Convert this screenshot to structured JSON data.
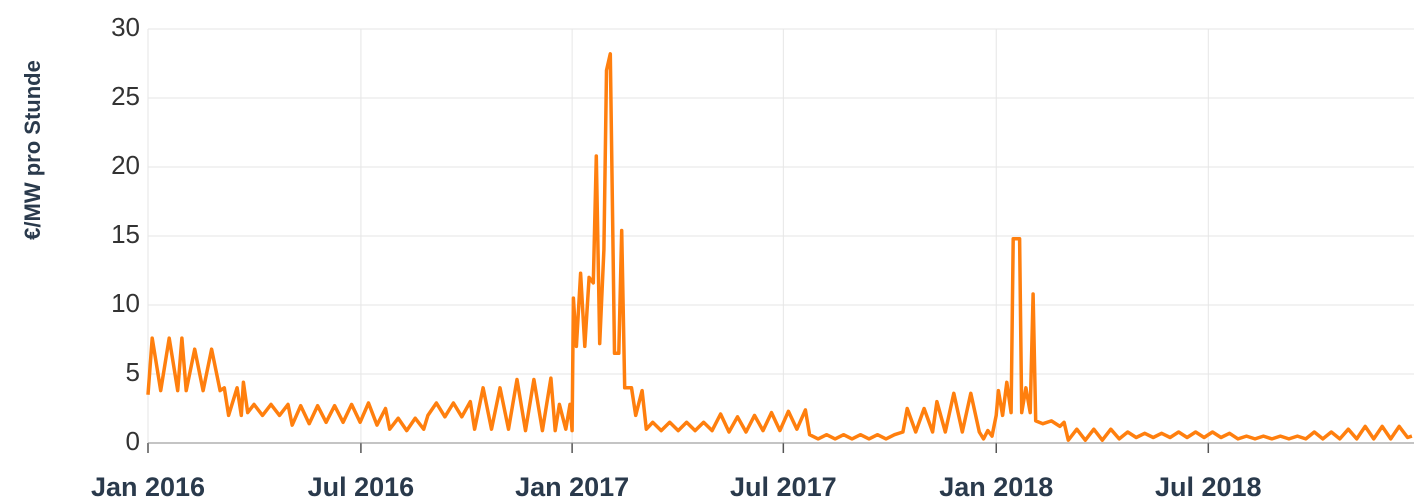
{
  "chart_data": {
    "type": "line",
    "ylabel": "€/MW pro Stunde",
    "color": "#ff7f0e",
    "grid": true,
    "xlim": [
      2016,
      2018.985
    ],
    "ylim": [
      0,
      30
    ],
    "yticks": [
      0,
      5,
      10,
      15,
      20,
      25,
      30
    ],
    "xticks": [
      {
        "value": 2016,
        "label": "Jan 2016"
      },
      {
        "value": 2016.502,
        "label": "Jul 2016"
      },
      {
        "value": 2017,
        "label": "Jan 2017"
      },
      {
        "value": 2017.498,
        "label": "Jul 2017"
      },
      {
        "value": 2018,
        "label": "Jan 2018"
      },
      {
        "value": 2018.5,
        "label": "Jul 2018"
      }
    ],
    "x": [
      2016.0,
      2016.01,
      2016.03,
      2016.05,
      2016.07,
      2016.08,
      2016.09,
      2016.11,
      2016.13,
      2016.15,
      2016.17,
      2016.18,
      2016.19,
      2016.21,
      2016.22,
      2016.225,
      2016.235,
      2016.25,
      2016.27,
      2016.29,
      2016.31,
      2016.33,
      2016.34,
      2016.36,
      2016.38,
      2016.4,
      2016.42,
      2016.44,
      2016.46,
      2016.48,
      2016.5,
      2016.52,
      2016.54,
      2016.56,
      2016.57,
      2016.59,
      2016.61,
      2016.63,
      2016.65,
      2016.66,
      2016.68,
      2016.7,
      2016.72,
      2016.74,
      2016.76,
      2016.77,
      2016.79,
      2016.81,
      2016.83,
      2016.85,
      2016.87,
      2016.89,
      2016.91,
      2016.93,
      2016.95,
      2016.96,
      2016.97,
      2016.985,
      2016.995,
      2017.0,
      2017.003,
      2017.01,
      2017.02,
      2017.03,
      2017.04,
      2017.05,
      2017.057,
      2017.065,
      2017.075,
      2017.081,
      2017.09,
      2017.1,
      2017.11,
      2017.117,
      2017.124,
      2017.14,
      2017.15,
      2017.165,
      2017.175,
      2017.19,
      2017.21,
      2017.23,
      2017.25,
      2017.27,
      2017.29,
      2017.31,
      2017.33,
      2017.35,
      2017.37,
      2017.39,
      2017.41,
      2017.43,
      2017.45,
      2017.47,
      2017.49,
      2017.51,
      2017.53,
      2017.55,
      2017.56,
      2017.58,
      2017.6,
      2017.62,
      2017.64,
      2017.66,
      2017.68,
      2017.7,
      2017.72,
      2017.74,
      2017.76,
      2017.78,
      2017.79,
      2017.81,
      2017.83,
      2017.85,
      2017.86,
      2017.88,
      2017.9,
      2017.92,
      2017.94,
      2017.96,
      2017.97,
      2017.98,
      2017.99,
      2018.0,
      2018.005,
      2018.015,
      2018.025,
      2018.035,
      2018.04,
      2018.055,
      2018.06,
      2018.07,
      2018.08,
      2018.087,
      2018.093,
      2018.11,
      2018.13,
      2018.15,
      2018.16,
      2018.17,
      2018.19,
      2018.21,
      2018.23,
      2018.25,
      2018.27,
      2018.29,
      2018.31,
      2018.33,
      2018.35,
      2018.37,
      2018.39,
      2018.41,
      2018.43,
      2018.45,
      2018.47,
      2018.49,
      2018.51,
      2018.53,
      2018.55,
      2018.57,
      2018.59,
      2018.61,
      2018.63,
      2018.65,
      2018.67,
      2018.69,
      2018.71,
      2018.73,
      2018.75,
      2018.77,
      2018.79,
      2018.81,
      2018.83,
      2018.85,
      2018.87,
      2018.89,
      2018.91,
      2018.93,
      2018.95,
      2018.97,
      2018.98
    ],
    "values": [
      3.5,
      7.6,
      3.8,
      7.6,
      3.8,
      7.6,
      3.8,
      6.8,
      3.8,
      6.8,
      3.8,
      4.0,
      2.0,
      4.0,
      2.0,
      4.4,
      2.2,
      2.8,
      2.0,
      2.8,
      2.0,
      2.8,
      1.3,
      2.7,
      1.4,
      2.7,
      1.5,
      2.7,
      1.5,
      2.8,
      1.5,
      2.9,
      1.3,
      2.5,
      1.0,
      1.8,
      0.9,
      1.8,
      1.0,
      2.0,
      2.9,
      1.9,
      2.9,
      1.9,
      3.0,
      1.0,
      4.0,
      1.0,
      4.0,
      1.0,
      4.6,
      0.9,
      4.6,
      0.9,
      4.7,
      0.9,
      2.8,
      1.0,
      2.8,
      0.9,
      10.5,
      7,
      12.3,
      7,
      12,
      11.6,
      20.8,
      7.2,
      14,
      27,
      28.2,
      6.5,
      6.5,
      15.4,
      4.0,
      4.0,
      2.0,
      3.8,
      1.0,
      1.5,
      0.9,
      1.5,
      0.9,
      1.5,
      0.9,
      1.5,
      0.9,
      2.1,
      0.8,
      1.9,
      0.8,
      2.0,
      0.9,
      2.2,
      0.9,
      2.3,
      1.0,
      2.4,
      0.6,
      0.3,
      0.6,
      0.3,
      0.6,
      0.3,
      0.6,
      0.3,
      0.6,
      0.3,
      0.6,
      0.8,
      2.5,
      0.8,
      2.5,
      0.8,
      3.0,
      0.8,
      3.6,
      0.8,
      3.6,
      0.8,
      0.3,
      0.9,
      0.5,
      2.0,
      3.8,
      2.0,
      4.4,
      2.2,
      14.8,
      14.8,
      2.2,
      4.0,
      2.2,
      10.8,
      1.6,
      1.4,
      1.6,
      1.2,
      1.5,
      0.2,
      1.0,
      0.2,
      1.0,
      0.2,
      1.0,
      0.3,
      0.8,
      0.4,
      0.7,
      0.4,
      0.7,
      0.4,
      0.8,
      0.4,
      0.8,
      0.4,
      0.8,
      0.4,
      0.7,
      0.3,
      0.5,
      0.3,
      0.5,
      0.3,
      0.5,
      0.3,
      0.5,
      0.3,
      0.8,
      0.3,
      0.8,
      0.3,
      1.0,
      0.3,
      1.2,
      0.3,
      1.2,
      0.3,
      1.2,
      0.4,
      0.5
    ]
  }
}
